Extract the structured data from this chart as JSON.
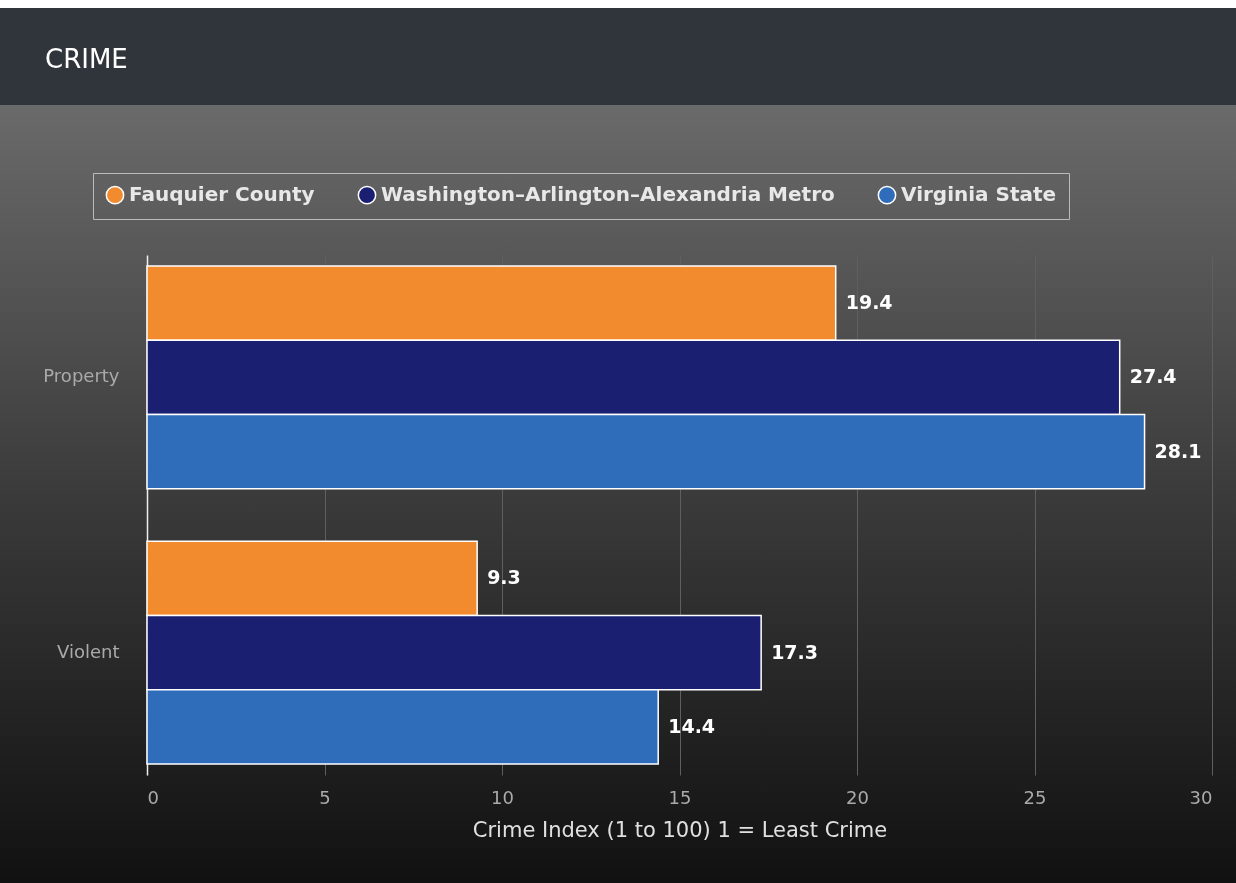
{
  "chart_data": {
    "type": "bar",
    "orientation": "horizontal",
    "title": "CRIME",
    "xlabel": "Crime Index (1 to 100) 1 = Least Crime",
    "categories": [
      "Property",
      "Violent"
    ],
    "series": [
      {
        "name": "Fauquier County",
        "color": "#f28a2e",
        "values": [
          19.4,
          9.3
        ]
      },
      {
        "name": "Washington–Arlington–Alexandria Metro",
        "color": "#1b1f72",
        "values": [
          27.4,
          17.3
        ]
      },
      {
        "name": "Virginia State",
        "color": "#2f6dbb",
        "values": [
          28.1,
          14.4
        ]
      }
    ],
    "xlim": [
      0,
      30
    ],
    "xticks": [
      0,
      5,
      10,
      15,
      20,
      25,
      30
    ],
    "grid": "x",
    "legend": "top",
    "data_labels": true
  }
}
